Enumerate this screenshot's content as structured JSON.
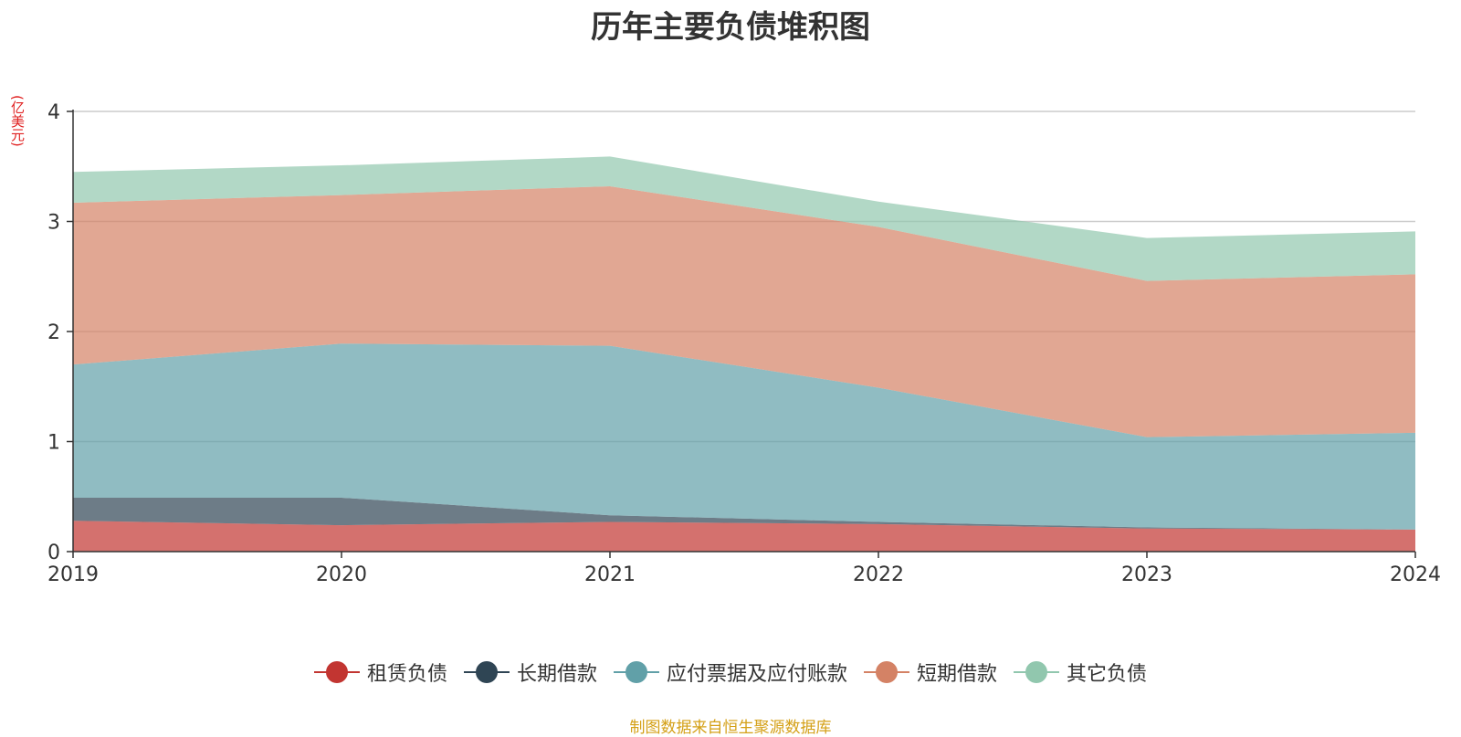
{
  "chart_data": {
    "type": "area",
    "stacked": true,
    "title": "历年主要负债堆积图",
    "ylabel": "(亿美元)",
    "xlabel": "",
    "x": [
      "2019",
      "2020",
      "2021",
      "2022",
      "2023",
      "2024"
    ],
    "ylim": [
      0,
      4
    ],
    "yticks": [
      "0",
      "1",
      "2",
      "3",
      "4"
    ],
    "grid": true,
    "legend_position": "bottom",
    "series": [
      {
        "name": "租赁负债",
        "color": "#c23531",
        "values": [
          0.28,
          0.24,
          0.27,
          0.25,
          0.21,
          0.2
        ]
      },
      {
        "name": "长期借款",
        "color": "#2f4554",
        "values": [
          0.21,
          0.25,
          0.06,
          0.02,
          0.01,
          0.0
        ]
      },
      {
        "name": "应付票据及应付账款",
        "color": "#61a0a8",
        "values": [
          1.21,
          1.4,
          1.54,
          1.22,
          0.82,
          0.88
        ]
      },
      {
        "name": "短期借款",
        "color": "#d48265",
        "values": [
          1.47,
          1.35,
          1.45,
          1.46,
          1.42,
          1.44
        ]
      },
      {
        "name": "其它负债",
        "color": "#91c7ae",
        "values": [
          0.28,
          0.27,
          0.27,
          0.23,
          0.39,
          0.39
        ]
      }
    ]
  },
  "footer": {
    "source": "制图数据来自恒生聚源数据库"
  }
}
